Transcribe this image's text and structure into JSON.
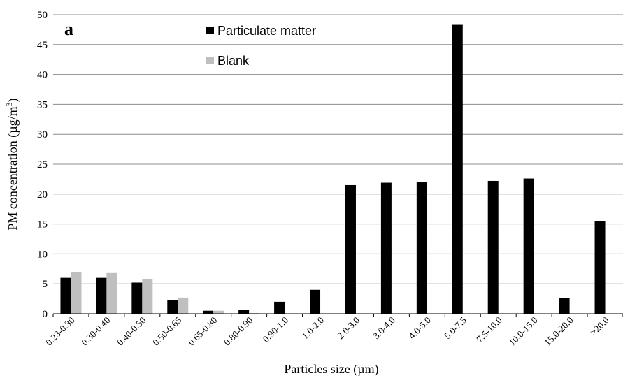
{
  "chart_data": {
    "type": "bar",
    "panel_label": "a",
    "xlabel": "Particles size (µm)",
    "ylabel_main": "PM concentration (µg/m",
    "ylabel_sup": "3",
    "ylabel_end": ")",
    "ylim": [
      0,
      50
    ],
    "yticks": [
      0,
      5,
      10,
      15,
      20,
      25,
      30,
      35,
      40,
      45,
      50
    ],
    "grid": true,
    "legend_position": "top-center",
    "categories": [
      "0.23-0.30",
      "0.30-0.40",
      "0.40-0.50",
      "0.50-0.65",
      "0.65-0.80",
      "0.80-0.90",
      "0.90-1.0",
      "1.0-2.0",
      "2.0-3.0",
      "3.0-4.0",
      "4.0-5.0",
      "5.0-7.5",
      "7.5-10.0",
      "10.0-15.0",
      "15.0-20.0",
      ">20.0"
    ],
    "series": [
      {
        "name": "Particulate matter",
        "color": "#000000",
        "values": [
          6.0,
          6.0,
          5.2,
          2.3,
          0.5,
          0.6,
          2.0,
          4.0,
          21.5,
          21.9,
          22.0,
          48.3,
          22.2,
          22.6,
          2.6,
          15.5
        ]
      },
      {
        "name": "Blank",
        "color": "#bfbfbf",
        "values": [
          6.9,
          6.8,
          5.8,
          2.7,
          0.5,
          0.1,
          0,
          0,
          0,
          0,
          0,
          0,
          0,
          0,
          0,
          0
        ]
      }
    ]
  }
}
